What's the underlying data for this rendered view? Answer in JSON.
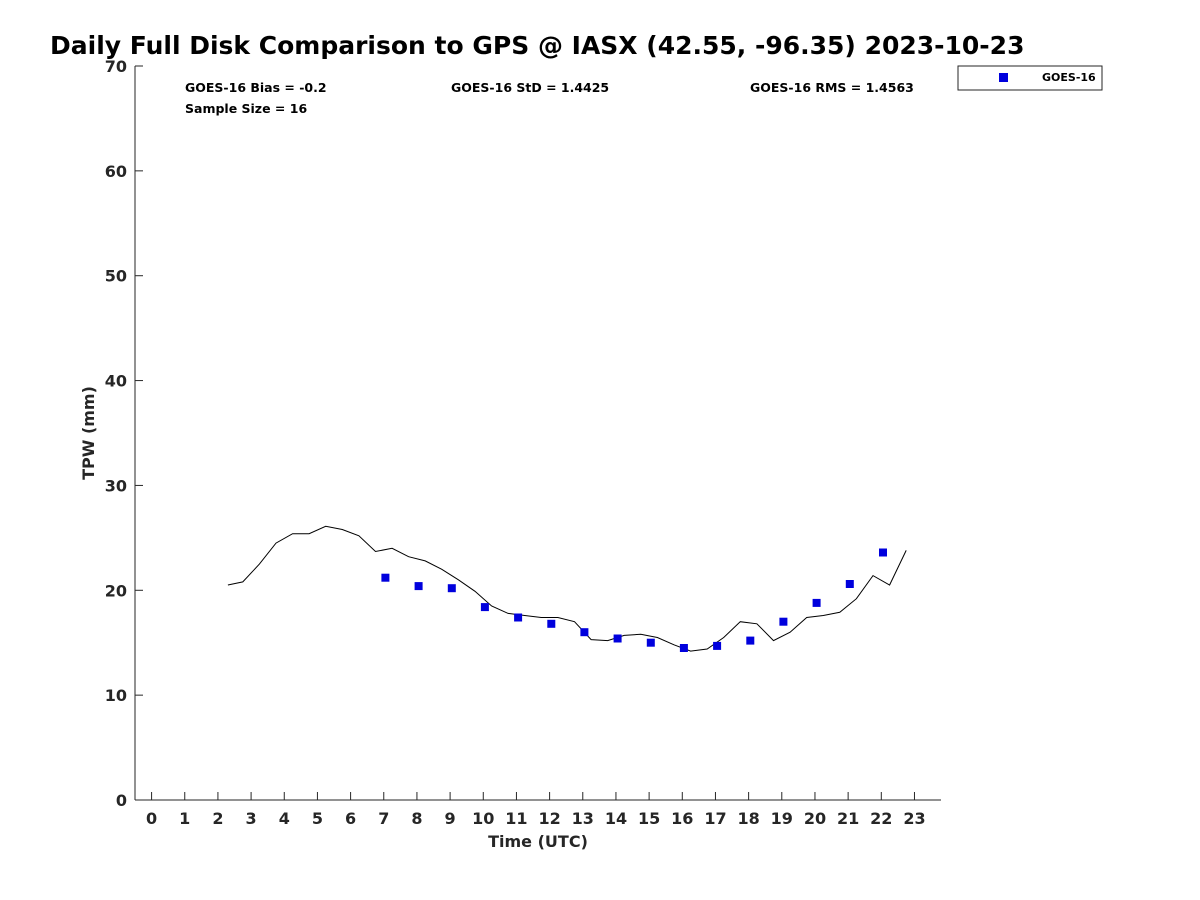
{
  "chart_data": {
    "type": "scatter",
    "title": "Daily Full Disk Comparison to GPS @ IASX (42.55, -96.35) 2023-10-23",
    "xlabel": "Time (UTC)",
    "ylabel": "TPW (mm)",
    "xlim": [
      -0.5,
      23.8
    ],
    "ylim": [
      0,
      70
    ],
    "x_ticks": [
      0,
      1,
      2,
      3,
      4,
      5,
      6,
      7,
      8,
      9,
      10,
      11,
      12,
      13,
      14,
      15,
      16,
      17,
      18,
      19,
      20,
      21,
      22,
      23
    ],
    "y_ticks": [
      0,
      10,
      20,
      30,
      40,
      50,
      60,
      70
    ],
    "grid": false,
    "legend_position": "top-right-outside",
    "stats": {
      "bias": "GOES-16 Bias = -0.2",
      "std": "GOES-16 StD = 1.4425",
      "rms": "GOES-16 RMS = 1.4563",
      "sample": "Sample Size = 16"
    },
    "series": [
      {
        "name": "GOES-16",
        "kind": "scatter",
        "marker": "square",
        "color": "#0000dd",
        "x": [
          7.05,
          8.05,
          9.05,
          10.05,
          11.05,
          12.05,
          13.05,
          14.05,
          15.05,
          16.05,
          17.05,
          18.05,
          19.05,
          20.05,
          21.05,
          22.05
        ],
        "y": [
          21.2,
          20.4,
          20.2,
          18.4,
          17.4,
          16.8,
          16.0,
          15.4,
          15.0,
          14.5,
          14.7,
          15.2,
          17.0,
          18.8,
          20.6,
          23.6
        ]
      },
      {
        "kind": "line",
        "color": "#000000",
        "x": [
          2.3,
          2.75,
          3.25,
          3.75,
          4.25,
          4.75,
          5.25,
          5.75,
          6.25,
          6.75,
          7.25,
          7.75,
          8.25,
          8.75,
          9.25,
          9.75,
          10.25,
          10.75,
          11.25,
          11.75,
          12.25,
          12.75,
          13.25,
          13.75,
          14.25,
          14.75,
          15.25,
          15.75,
          16.25,
          16.75,
          17.25,
          17.75,
          18.25,
          18.75,
          19.25,
          19.75,
          20.25,
          20.75,
          21.25,
          21.75,
          22.25,
          22.75
        ],
        "y": [
          20.5,
          20.8,
          22.5,
          24.5,
          25.4,
          25.4,
          26.1,
          25.8,
          25.2,
          23.7,
          24.0,
          23.2,
          22.8,
          22.0,
          21.0,
          19.9,
          18.5,
          17.8,
          17.6,
          17.4,
          17.4,
          17.0,
          15.3,
          15.2,
          15.7,
          15.8,
          15.5,
          14.8,
          14.2,
          14.4,
          15.5,
          17.0,
          16.8,
          15.2,
          16.0,
          17.4,
          17.6,
          17.9,
          19.2,
          21.4,
          20.5,
          23.8
        ]
      }
    ]
  }
}
